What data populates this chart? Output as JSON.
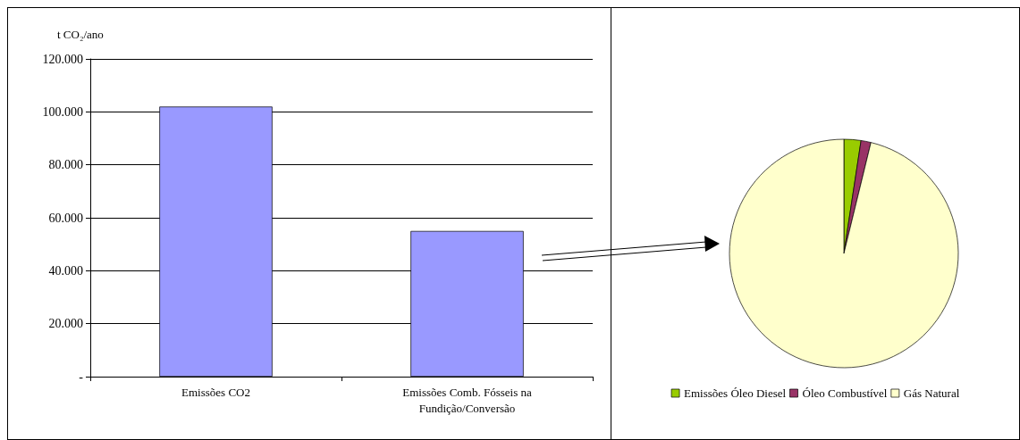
{
  "chart_data": [
    {
      "type": "bar",
      "ylabel": "t CO₂/ano",
      "categories": [
        "Emissões CO2",
        "Emissões Comb. Fósseis na\nFundição/Conversão"
      ],
      "values": [
        102000,
        55000
      ],
      "color": "#9999ff",
      "ylim": [
        0,
        120000
      ],
      "yticks": [
        {
          "value": 0,
          "label": "-"
        },
        {
          "value": 20000,
          "label": "20.000"
        },
        {
          "value": 40000,
          "label": "40.000"
        },
        {
          "value": 60000,
          "label": "60.000"
        },
        {
          "value": 80000,
          "label": "80.000"
        },
        {
          "value": 100000,
          "label": "100.000"
        },
        {
          "value": 120000,
          "label": "120.000"
        }
      ],
      "grid": "y",
      "legend": false
    },
    {
      "type": "pie",
      "categories": [
        "Emissões Óleo Diesel",
        "Óleo Combustível",
        "Gás Natural"
      ],
      "values": [
        2.4,
        1.4,
        96.2
      ],
      "colors": [
        "#99cc00",
        "#993366",
        "#ffffcc"
      ],
      "legend": "bottom"
    }
  ]
}
